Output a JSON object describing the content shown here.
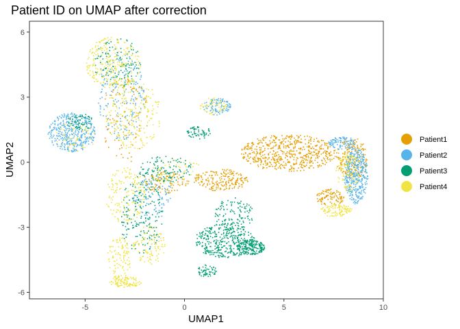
{
  "chart_data": {
    "type": "scatter",
    "title": "Patient ID on UMAP after correction",
    "xlabel": "UMAP1",
    "ylabel": "UMAP2",
    "xlim": [
      -7.8,
      10
    ],
    "ylim": [
      -6.3,
      6.5
    ],
    "x_ticks": [
      -5,
      0,
      5,
      10
    ],
    "y_ticks": [
      -6,
      -3,
      0,
      3,
      6
    ],
    "grid": false,
    "legend_placement": "right",
    "series": [
      {
        "name": "Patient1",
        "color": "#E69F00",
        "regions": [
          {
            "cx": 5.2,
            "cy": 0.45,
            "rx": 2.4,
            "ry": 0.85,
            "w": 6
          },
          {
            "cx": 8.4,
            "cy": 0.2,
            "rx": 0.8,
            "ry": 1.0,
            "w": 2
          },
          {
            "cx": 1.8,
            "cy": -0.8,
            "rx": 1.4,
            "ry": 0.5,
            "w": 2
          },
          {
            "cx": 7.3,
            "cy": -1.6,
            "rx": 0.7,
            "ry": 0.4,
            "w": 1
          },
          {
            "cx": -1.0,
            "cy": -0.9,
            "rx": 1.2,
            "ry": 0.5,
            "w": 1
          },
          {
            "cx": -3.0,
            "cy": 2.0,
            "rx": 1.2,
            "ry": 2.0,
            "w": 1
          }
        ]
      },
      {
        "name": "Patient2",
        "color": "#56B4E9",
        "regions": [
          {
            "cx": 8.6,
            "cy": -0.6,
            "rx": 0.6,
            "ry": 1.3,
            "w": 4
          },
          {
            "cx": -5.7,
            "cy": 1.4,
            "rx": 1.2,
            "ry": 0.9,
            "w": 4
          },
          {
            "cx": -3.2,
            "cy": 3.0,
            "rx": 1.2,
            "ry": 2.0,
            "w": 2
          },
          {
            "cx": -1.6,
            "cy": -1.6,
            "rx": 1.0,
            "ry": 1.0,
            "w": 1
          },
          {
            "cx": 7.9,
            "cy": 0.9,
            "rx": 0.7,
            "ry": 0.3,
            "w": 1
          },
          {
            "cx": 1.6,
            "cy": 2.6,
            "rx": 0.7,
            "ry": 0.4,
            "w": 1
          }
        ]
      },
      {
        "name": "Patient3",
        "color": "#009E73",
        "regions": [
          {
            "cx": 2.0,
            "cy": -3.6,
            "rx": 1.5,
            "ry": 0.8,
            "w": 6
          },
          {
            "cx": 3.3,
            "cy": -3.9,
            "rx": 0.7,
            "ry": 0.35,
            "w": 3
          },
          {
            "cx": 2.5,
            "cy": -2.4,
            "rx": 1.0,
            "ry": 0.8,
            "w": 2
          },
          {
            "cx": -2.2,
            "cy": -2.4,
            "rx": 1.1,
            "ry": 1.8,
            "w": 3
          },
          {
            "cx": -3.4,
            "cy": 4.6,
            "rx": 1.2,
            "ry": 1.2,
            "w": 2
          },
          {
            "cx": -1.0,
            "cy": -0.3,
            "rx": 1.4,
            "ry": 0.6,
            "w": 2
          },
          {
            "cx": 0.7,
            "cy": 1.4,
            "rx": 0.6,
            "ry": 0.3,
            "w": 1
          },
          {
            "cx": -5.3,
            "cy": 1.9,
            "rx": 0.7,
            "ry": 0.4,
            "w": 1
          },
          {
            "cx": 1.1,
            "cy": -5.0,
            "rx": 0.5,
            "ry": 0.3,
            "w": 1
          }
        ]
      },
      {
        "name": "Patient4",
        "color": "#F0E442",
        "regions": [
          {
            "cx": -3.6,
            "cy": 4.6,
            "rx": 1.4,
            "ry": 1.2,
            "w": 5
          },
          {
            "cx": -2.6,
            "cy": 2.2,
            "rx": 1.4,
            "ry": 1.6,
            "w": 4
          },
          {
            "cx": -3.3,
            "cy": -4.4,
            "rx": 0.6,
            "ry": 1.0,
            "w": 2
          },
          {
            "cx": -3.0,
            "cy": -5.5,
            "rx": 0.8,
            "ry": 0.25,
            "w": 2
          },
          {
            "cx": -3.0,
            "cy": -1.5,
            "rx": 1.0,
            "ry": 1.3,
            "w": 3
          },
          {
            "cx": -1.8,
            "cy": -3.8,
            "rx": 0.8,
            "ry": 0.9,
            "w": 2
          },
          {
            "cx": 8.2,
            "cy": -0.4,
            "rx": 0.6,
            "ry": 0.9,
            "w": 2
          },
          {
            "cx": 7.6,
            "cy": -2.2,
            "rx": 0.8,
            "ry": 0.3,
            "w": 2
          },
          {
            "cx": 1.4,
            "cy": 2.6,
            "rx": 0.7,
            "ry": 0.4,
            "w": 1
          },
          {
            "cx": -5.5,
            "cy": 1.2,
            "rx": 1.0,
            "ry": 0.7,
            "w": 1
          },
          {
            "cx": -0.5,
            "cy": -0.4,
            "rx": 1.4,
            "ry": 0.6,
            "w": 1
          }
        ]
      }
    ]
  }
}
